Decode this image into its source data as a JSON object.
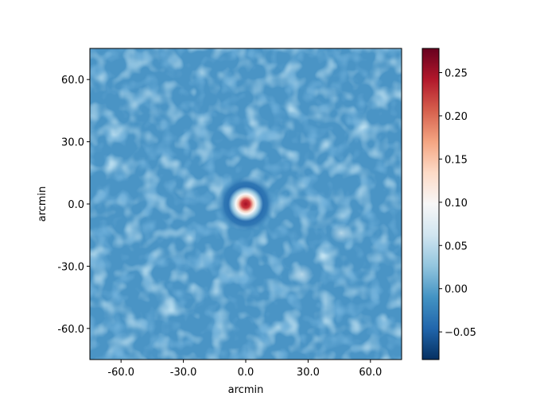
{
  "chart_data": {
    "type": "heatmap",
    "title": "",
    "xlabel": "arcmin",
    "ylabel": "arcmin",
    "xlim": [
      -75,
      75
    ],
    "ylim": [
      -75,
      75
    ],
    "xticks": [
      -60,
      -30,
      0,
      30,
      60
    ],
    "xtick_labels": [
      "-60.0",
      "-30.0",
      "0.0",
      "30.0",
      "60.0"
    ],
    "yticks": [
      60,
      30,
      0,
      -30,
      -60
    ],
    "ytick_labels": [
      "60.0",
      "30.0",
      "0.0",
      "-30.0",
      "-60.0"
    ],
    "grid": false,
    "colormap": "RdBu_r",
    "colorbar": {
      "vmin": -0.082,
      "vmax": 0.278,
      "ticks": [
        0.25,
        0.2,
        0.15,
        0.1,
        0.05,
        0.0,
        -0.05
      ],
      "tick_labels": [
        "0.25",
        "0.20",
        "0.15",
        "0.10",
        "0.05",
        "0.00",
        "−0.05"
      ]
    },
    "background_level": 0.02,
    "features": [
      {
        "kind": "central peak",
        "x": 0,
        "y": 0,
        "peak_value": 0.278,
        "fwhm_arcmin": 4
      },
      {
        "kind": "negative ring",
        "x": 0,
        "y": 0,
        "radius_arcmin": 8,
        "value": -0.05
      },
      {
        "kind": "faint positive source",
        "x": 46,
        "y": -14,
        "value": 0.045
      },
      {
        "kind": "faint positive source",
        "x": 27,
        "y": -34,
        "value": 0.045
      }
    ]
  },
  "colors": {
    "background_map": "#4a94c5",
    "axes_frame": "#000000",
    "cmap_stops": [
      "#053061",
      "#2166ac",
      "#4393c3",
      "#92c5de",
      "#d1e5f0",
      "#f7f7f7",
      "#fddbc7",
      "#f4a582",
      "#d6604d",
      "#b2182b",
      "#67001f"
    ]
  }
}
